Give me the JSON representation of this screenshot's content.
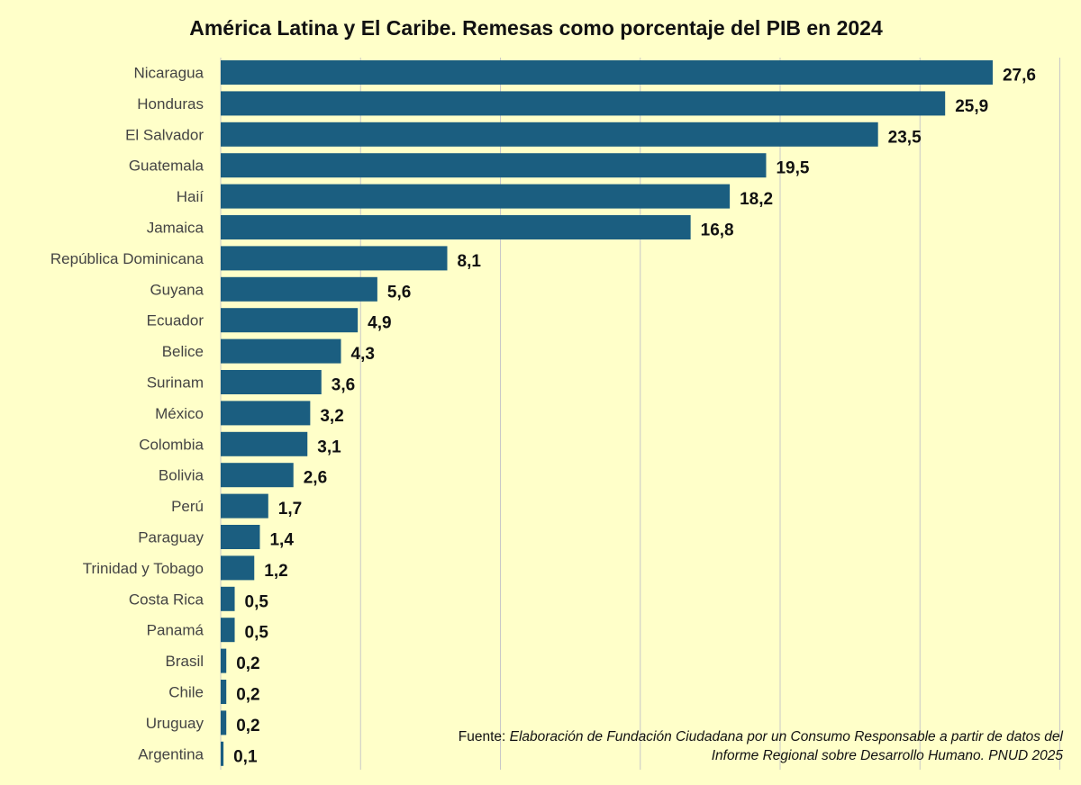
{
  "colors": {
    "background": "#ffffc9",
    "bar": "#1b5e80",
    "grid": "#c8c8c8"
  },
  "chart_data": {
    "type": "bar",
    "orientation": "horizontal",
    "title": "América Latina y El Caribe. Remesas como porcentaje del PIB en 2024",
    "categories": [
      "Nicaragua",
      "Honduras",
      "El Salvador",
      "Guatemala",
      "Haií",
      "Jamaica",
      "República Dominicana",
      "Guyana",
      "Ecuador",
      "Belice",
      "Surinam",
      "México",
      "Colombia",
      "Bolivia",
      "Perú",
      "Paraguay",
      "Trinidad y Tobago",
      "Costa Rica",
      "Panamá",
      "Brasil",
      "Chile",
      "Uruguay",
      "Argentina"
    ],
    "values": [
      27.6,
      25.9,
      23.5,
      19.5,
      18.2,
      16.8,
      8.1,
      5.6,
      4.9,
      4.3,
      3.6,
      3.2,
      3.1,
      2.6,
      1.7,
      1.4,
      1.2,
      0.5,
      0.5,
      0.2,
      0.2,
      0.2,
      0.1
    ],
    "value_labels": [
      "27,6",
      "25,9",
      "23,5",
      "19,5",
      "18,2",
      "16,8",
      "8,1",
      "5,6",
      "4,9",
      "4,3",
      "3,6",
      "3,2",
      "3,1",
      "2,6",
      "1,7",
      "1,4",
      "1,2",
      "0,5",
      "0,5",
      "0,2",
      "0,2",
      "0,2",
      "0,1"
    ],
    "xlim": [
      0,
      30
    ],
    "grid": true,
    "x_tick_labels_shown": false
  },
  "source": {
    "label": "Fuente:",
    "text": "Elaboración de Fundación Ciudadana por un Consumo Responsable a partir de datos del  Informe Regional sobre Desarrollo Humano. PNUD 2025"
  }
}
